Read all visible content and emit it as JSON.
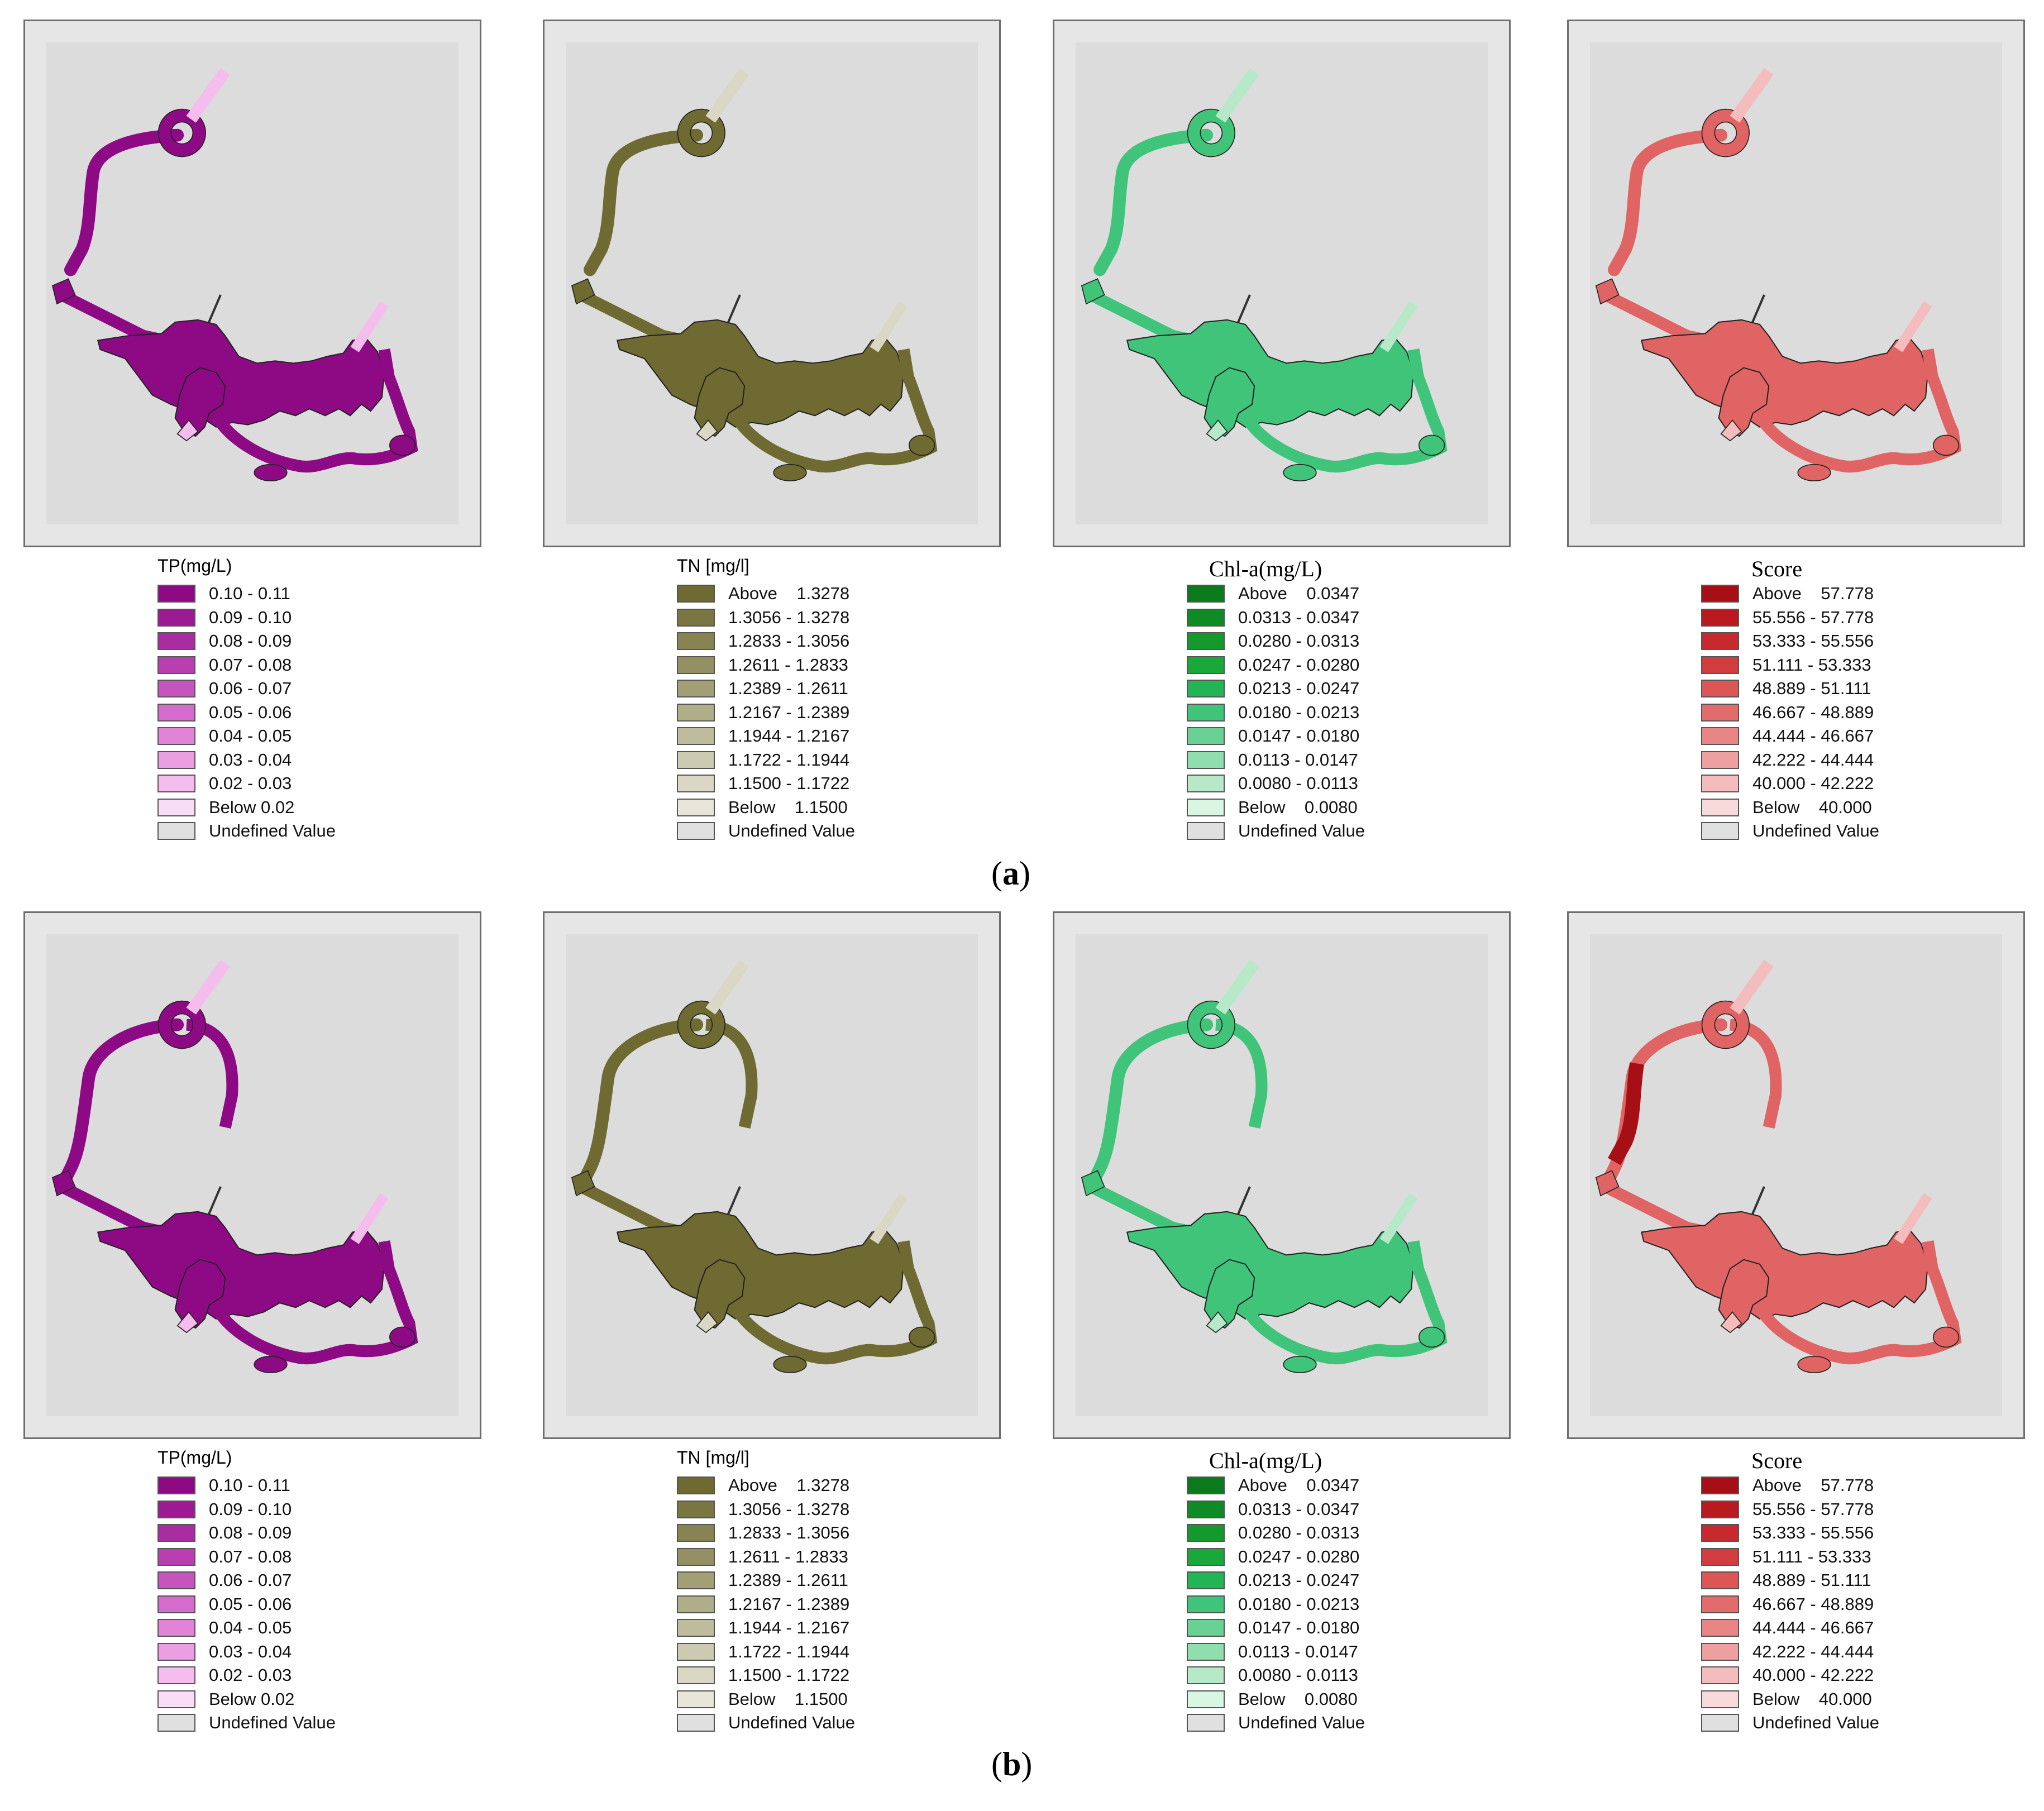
{
  "panels": [
    {
      "label": "a",
      "maps": [
        {
          "variable": "TP",
          "fill": "#8e0a84",
          "legend_title": "TP(mg/L)",
          "legend_items": [
            {
              "label": "0.10 - 0.11",
              "color": "#8e0a84"
            },
            {
              "label": "0.09 - 0.10",
              "color": "#9c1a92"
            },
            {
              "label": "0.08 - 0.09",
              "color": "#aa2ca1"
            },
            {
              "label": "0.07 - 0.08",
              "color": "#b93fb0"
            },
            {
              "label": "0.06 - 0.07",
              "color": "#c753bf"
            },
            {
              "label": "0.05 - 0.06",
              "color": "#d56bcc"
            },
            {
              "label": "0.04 - 0.05",
              "color": "#e283d8"
            },
            {
              "label": "0.03 - 0.04",
              "color": "#ec9ee3"
            },
            {
              "label": "0.02 - 0.03",
              "color": "#f5bdee"
            },
            {
              "label": "Below 0.02",
              "color": "#fbdcf7"
            },
            {
              "label": "Undefined Value",
              "color": "#e0e0e0"
            }
          ]
        },
        {
          "variable": "TN",
          "fill": "#6e6a32",
          "legend_title": "TN [mg/l]",
          "legend_items": [
            {
              "label": "Above    1.3278",
              "color": "#6e6a32"
            },
            {
              "label": "1.3056 - 1.3278",
              "color": "#7a7642"
            },
            {
              "label": "1.2833 - 1.3056",
              "color": "#878352"
            },
            {
              "label": "1.2611 - 1.2833",
              "color": "#949064"
            },
            {
              "label": "1.2389 - 1.2611",
              "color": "#a29f76"
            },
            {
              "label": "1.2167 - 1.2389",
              "color": "#b0ad89"
            },
            {
              "label": "1.1944 - 1.2167",
              "color": "#bebc9d"
            },
            {
              "label": "1.1722 - 1.1944",
              "color": "#cccab1"
            },
            {
              "label": "1.1500 - 1.1722",
              "color": "#dad8c5"
            },
            {
              "label": "Below    1.1500",
              "color": "#e7e6d8"
            },
            {
              "label": "Undefined Value",
              "color": "#e0e0e0"
            }
          ]
        },
        {
          "variable": "Chl-a",
          "fill": "#3fc47a",
          "legend_title": "Chl-a(mg/L)",
          "legend_items": [
            {
              "label": "Above    0.0347",
              "color": "#0a7a1c"
            },
            {
              "label": "0.0313 - 0.0347",
              "color": "#0f8a24"
            },
            {
              "label": "0.0280 - 0.0313",
              "color": "#14992c"
            },
            {
              "label": "0.0247 - 0.0280",
              "color": "#1aa83a"
            },
            {
              "label": "0.0213 - 0.0247",
              "color": "#22b455"
            },
            {
              "label": "0.0180 - 0.0213",
              "color": "#3fc47a"
            },
            {
              "label": "0.0147 - 0.0180",
              "color": "#68d193"
            },
            {
              "label": "0.0113 - 0.0147",
              "color": "#90ddad"
            },
            {
              "label": "0.0080 - 0.0113",
              "color": "#b7e9c9"
            },
            {
              "label": "Below    0.0080",
              "color": "#d9f6e3"
            },
            {
              "label": "Undefined Value",
              "color": "#e0e0e0"
            }
          ]
        },
        {
          "variable": "Score",
          "fill": "#e06464",
          "legend_title": "Score",
          "legend_items": [
            {
              "label": "Above    57.778",
              "color": "#a50f15"
            },
            {
              "label": "55.556 - 57.778",
              "color": "#b81a1f"
            },
            {
              "label": "53.333 - 55.556",
              "color": "#c62a2e"
            },
            {
              "label": "51.111 - 53.333",
              "color": "#d13d3f"
            },
            {
              "label": "48.889 - 51.111",
              "color": "#dc5656"
            },
            {
              "label": "46.667 - 48.889",
              "color": "#e26b6b"
            },
            {
              "label": "44.444 - 46.667",
              "color": "#e88585"
            },
            {
              "label": "42.222 - 44.444",
              "color": "#eea0a0"
            },
            {
              "label": "40.000 - 42.222",
              "color": "#f4bcbc"
            },
            {
              "label": "Below    40.000",
              "color": "#f9dada"
            },
            {
              "label": "Undefined Value",
              "color": "#e0e0e0"
            }
          ]
        }
      ]
    },
    {
      "label": "b",
      "maps": [
        {
          "variable": "TP",
          "fill": "#8e0a84",
          "legend_title": "TP(mg/L)",
          "legend_items": [
            {
              "label": "0.10 - 0.11",
              "color": "#8e0a84"
            },
            {
              "label": "0.09 - 0.10",
              "color": "#9c1a92"
            },
            {
              "label": "0.08 - 0.09",
              "color": "#aa2ca1"
            },
            {
              "label": "0.07 - 0.08",
              "color": "#b93fb0"
            },
            {
              "label": "0.06 - 0.07",
              "color": "#c753bf"
            },
            {
              "label": "0.05 - 0.06",
              "color": "#d56bcc"
            },
            {
              "label": "0.04 - 0.05",
              "color": "#e283d8"
            },
            {
              "label": "0.03 - 0.04",
              "color": "#ec9ee3"
            },
            {
              "label": "0.02 - 0.03",
              "color": "#f5bdee"
            },
            {
              "label": "Below 0.02",
              "color": "#fbdcf7"
            },
            {
              "label": "Undefined Value",
              "color": "#e0e0e0"
            }
          ]
        },
        {
          "variable": "TN",
          "fill": "#6e6a32",
          "legend_title": "TN [mg/l]",
          "legend_items": [
            {
              "label": "Above    1.3278",
              "color": "#6e6a32"
            },
            {
              "label": "1.3056 - 1.3278",
              "color": "#7a7642"
            },
            {
              "label": "1.2833 - 1.3056",
              "color": "#878352"
            },
            {
              "label": "1.2611 - 1.2833",
              "color": "#949064"
            },
            {
              "label": "1.2389 - 1.2611",
              "color": "#a29f76"
            },
            {
              "label": "1.2167 - 1.2389",
              "color": "#b0ad89"
            },
            {
              "label": "1.1944 - 1.2167",
              "color": "#bebc9d"
            },
            {
              "label": "1.1722 - 1.1944",
              "color": "#cccab1"
            },
            {
              "label": "1.1500 - 1.1722",
              "color": "#dad8c5"
            },
            {
              "label": "Below    1.1500",
              "color": "#e7e6d8"
            },
            {
              "label": "Undefined Value",
              "color": "#e0e0e0"
            }
          ]
        },
        {
          "variable": "Chl-a",
          "fill": "#3fc47a",
          "legend_title": "Chl-a(mg/L)",
          "legend_items": [
            {
              "label": "Above    0.0347",
              "color": "#0a7a1c"
            },
            {
              "label": "0.0313 - 0.0347",
              "color": "#0f8a24"
            },
            {
              "label": "0.0280 - 0.0313",
              "color": "#14992c"
            },
            {
              "label": "0.0247 - 0.0280",
              "color": "#1aa83a"
            },
            {
              "label": "0.0213 - 0.0247",
              "color": "#22b455"
            },
            {
              "label": "0.0180 - 0.0213",
              "color": "#3fc47a"
            },
            {
              "label": "0.0147 - 0.0180",
              "color": "#68d193"
            },
            {
              "label": "0.0113 - 0.0147",
              "color": "#90ddad"
            },
            {
              "label": "0.0080 - 0.0113",
              "color": "#b7e9c9"
            },
            {
              "label": "Below    0.0080",
              "color": "#d9f6e3"
            },
            {
              "label": "Undefined Value",
              "color": "#e0e0e0"
            }
          ]
        },
        {
          "variable": "Score",
          "fill": "#e06464",
          "legend_title": "Score",
          "legend_items": [
            {
              "label": "Above    57.778",
              "color": "#a50f15"
            },
            {
              "label": "55.556 - 57.778",
              "color": "#b81a1f"
            },
            {
              "label": "53.333 - 55.556",
              "color": "#c62a2e"
            },
            {
              "label": "51.111 - 53.333",
              "color": "#d13d3f"
            },
            {
              "label": "48.889 - 51.111",
              "color": "#dc5656"
            },
            {
              "label": "46.667 - 48.889",
              "color": "#e26b6b"
            },
            {
              "label": "44.444 - 46.667",
              "color": "#e88585"
            },
            {
              "label": "42.222 - 44.444",
              "color": "#eea0a0"
            },
            {
              "label": "40.000 - 42.222",
              "color": "#f4bcbc"
            },
            {
              "label": "Below    40.000",
              "color": "#f9dada"
            },
            {
              "label": "Undefined Value",
              "color": "#e0e0e0"
            }
          ]
        }
      ]
    }
  ]
}
